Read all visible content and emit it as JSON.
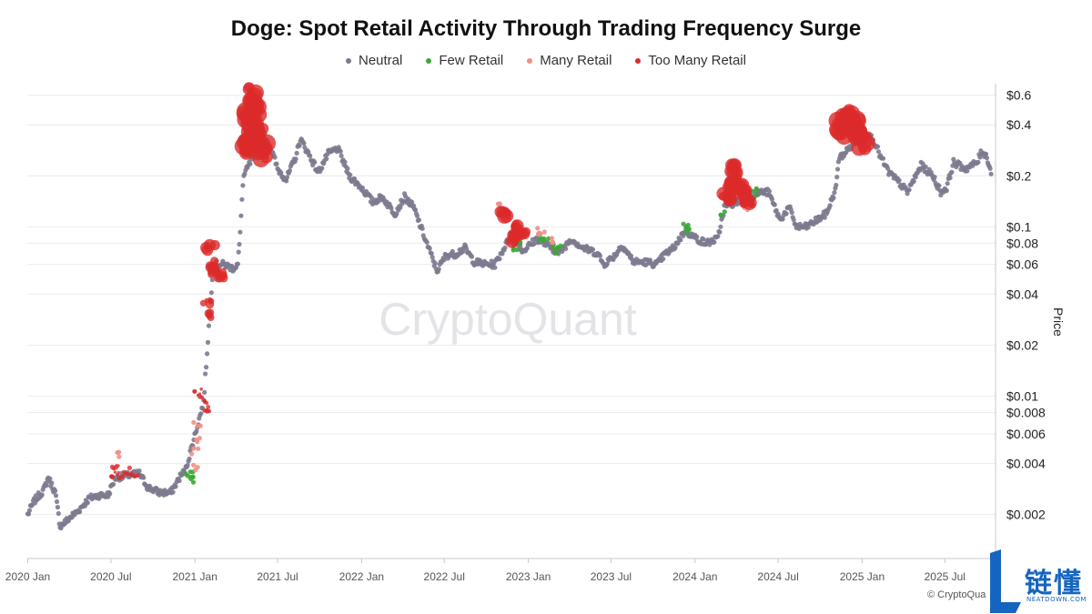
{
  "chart_data": {
    "type": "scatter",
    "title": "Doge: Spot Retail Activity Through Trading Frequency Surge",
    "ylabel": "Price",
    "yscale": "log",
    "ylim": [
      0.0011,
      0.7
    ],
    "xlim": [
      "2019-12-31",
      "2025-10-20"
    ],
    "grid": true,
    "legend_position": "top-center",
    "watermark": "CryptoQuant",
    "x_ticks": [
      "2020 Jan",
      "2020 Jul",
      "2021 Jan",
      "2021 Jul",
      "2022 Jan",
      "2022 Jul",
      "2023 Jan",
      "2023 Jul",
      "2024 Jan",
      "2024 Jul",
      "2025 Jan",
      "2025 Jul"
    ],
    "y_ticks": [
      {
        "value": 0.6,
        "label": "$0.6"
      },
      {
        "value": 0.4,
        "label": "$0.4"
      },
      {
        "value": 0.2,
        "label": "$0.2"
      },
      {
        "value": 0.1,
        "label": "$0.1"
      },
      {
        "value": 0.08,
        "label": "$0.08"
      },
      {
        "value": 0.06,
        "label": "$0.06"
      },
      {
        "value": 0.04,
        "label": "$0.04"
      },
      {
        "value": 0.02,
        "label": "$0.02"
      },
      {
        "value": 0.01,
        "label": "$0.01"
      },
      {
        "value": 0.008,
        "label": "$0.008"
      },
      {
        "value": 0.006,
        "label": "$0.006"
      },
      {
        "value": 0.004,
        "label": "$0.004"
      },
      {
        "value": 0.002,
        "label": "$0.002"
      }
    ],
    "series": [
      {
        "name": "Neutral",
        "color": "#7d7a8f",
        "points": [
          [
            "2020-01-01",
            0.002
          ],
          [
            "2020-01-15",
            0.0024
          ],
          [
            "2020-02-05",
            0.0028
          ],
          [
            "2020-02-15",
            0.0033
          ],
          [
            "2020-03-01",
            0.0027
          ],
          [
            "2020-03-12",
            0.0017
          ],
          [
            "2020-04-01",
            0.0019
          ],
          [
            "2020-04-20",
            0.0021
          ],
          [
            "2020-05-15",
            0.0025
          ],
          [
            "2020-06-05",
            0.0026
          ],
          [
            "2020-06-25",
            0.0026
          ],
          [
            "2020-07-10",
            0.0033
          ],
          [
            "2020-09-01",
            0.0035
          ],
          [
            "2020-09-20",
            0.0029
          ],
          [
            "2020-10-15",
            0.0027
          ],
          [
            "2020-11-10",
            0.0027
          ],
          [
            "2020-11-28",
            0.0033
          ],
          [
            "2020-12-12",
            0.0037
          ],
          [
            "2021-01-20",
            0.0092
          ],
          [
            "2021-02-10",
            0.06
          ],
          [
            "2021-03-05",
            0.06
          ],
          [
            "2021-03-25",
            0.057
          ],
          [
            "2021-04-05",
            0.06
          ],
          [
            "2021-04-10",
            0.09
          ],
          [
            "2021-04-14",
            0.15
          ],
          [
            "2021-04-18",
            0.2
          ],
          [
            "2021-06-01",
            0.35
          ],
          [
            "2021-06-15",
            0.3
          ],
          [
            "2021-07-01",
            0.22
          ],
          [
            "2021-07-20",
            0.19
          ],
          [
            "2021-08-10",
            0.26
          ],
          [
            "2021-08-20",
            0.33
          ],
          [
            "2021-09-10",
            0.26
          ],
          [
            "2021-09-28",
            0.21
          ],
          [
            "2021-10-20",
            0.27
          ],
          [
            "2021-11-10",
            0.29
          ],
          [
            "2021-12-05",
            0.2
          ],
          [
            "2022-01-01",
            0.17
          ],
          [
            "2022-01-25",
            0.14
          ],
          [
            "2022-02-15",
            0.15
          ],
          [
            "2022-03-15",
            0.12
          ],
          [
            "2022-04-05",
            0.15
          ],
          [
            "2022-04-25",
            0.13
          ],
          [
            "2022-05-20",
            0.085
          ],
          [
            "2022-06-15",
            0.055
          ],
          [
            "2022-07-05",
            0.068
          ],
          [
            "2022-07-25",
            0.069
          ],
          [
            "2022-08-15",
            0.075
          ],
          [
            "2022-09-05",
            0.062
          ],
          [
            "2022-10-01",
            0.06
          ],
          [
            "2022-10-20",
            0.06
          ],
          [
            "2022-11-25",
            0.09
          ],
          [
            "2022-12-20",
            0.072
          ],
          [
            "2023-01-20",
            0.085
          ],
          [
            "2023-03-10",
            0.07
          ],
          [
            "2023-04-05",
            0.085
          ],
          [
            "2023-05-01",
            0.075
          ],
          [
            "2023-06-01",
            0.07
          ],
          [
            "2023-06-15",
            0.06
          ],
          [
            "2023-07-10",
            0.068
          ],
          [
            "2023-07-25",
            0.078
          ],
          [
            "2023-08-20",
            0.062
          ],
          [
            "2023-09-15",
            0.062
          ],
          [
            "2023-10-10",
            0.06
          ],
          [
            "2023-10-25",
            0.068
          ],
          [
            "2023-11-15",
            0.075
          ],
          [
            "2023-12-10",
            0.095
          ],
          [
            "2024-01-05",
            0.085
          ],
          [
            "2024-01-25",
            0.08
          ],
          [
            "2024-02-20",
            0.085
          ],
          [
            "2024-03-05",
            0.13
          ],
          [
            "2024-05-20",
            0.16
          ],
          [
            "2024-06-10",
            0.16
          ],
          [
            "2024-07-05",
            0.11
          ],
          [
            "2024-07-25",
            0.13
          ],
          [
            "2024-08-10",
            0.1
          ],
          [
            "2024-09-01",
            0.1
          ],
          [
            "2024-09-25",
            0.11
          ],
          [
            "2024-10-15",
            0.12
          ],
          [
            "2024-11-05",
            0.17
          ],
          [
            "2024-11-10",
            0.25
          ],
          [
            "2025-01-05",
            0.36
          ],
          [
            "2025-01-25",
            0.33
          ],
          [
            "2025-02-10",
            0.26
          ],
          [
            "2025-02-28",
            0.21
          ],
          [
            "2025-03-25",
            0.18
          ],
          [
            "2025-04-10",
            0.16
          ],
          [
            "2025-05-10",
            0.23
          ],
          [
            "2025-06-05",
            0.2
          ],
          [
            "2025-06-22",
            0.16
          ],
          [
            "2025-07-05",
            0.17
          ],
          [
            "2025-07-20",
            0.24
          ],
          [
            "2025-08-15",
            0.22
          ],
          [
            "2025-09-10",
            0.24
          ],
          [
            "2025-09-20",
            0.28
          ],
          [
            "2025-10-01",
            0.26
          ],
          [
            "2025-10-12",
            0.2
          ]
        ]
      },
      {
        "name": "Few Retail",
        "color": "#3aa935",
        "points": [
          [
            "2020-12-18",
            0.0033
          ],
          [
            "2020-12-22",
            0.0035
          ],
          [
            "2020-12-25",
            0.0032
          ],
          [
            "2022-12-05",
            0.075
          ],
          [
            "2022-12-10",
            0.08
          ],
          [
            "2023-02-01",
            0.084
          ],
          [
            "2023-02-05",
            0.085
          ],
          [
            "2023-03-05",
            0.075
          ],
          [
            "2023-03-10",
            0.072
          ],
          [
            "2023-12-12",
            0.1
          ],
          [
            "2023-12-18",
            0.095
          ],
          [
            "2024-02-28",
            0.12
          ],
          [
            "2024-05-10",
            0.16
          ]
        ]
      },
      {
        "name": "Many Retail",
        "color": "#f08f85",
        "points": [
          [
            "2020-07-10",
            0.0045
          ],
          [
            "2020-12-28",
            0.0038
          ],
          [
            "2021-01-02",
            0.0047
          ],
          [
            "2021-01-05",
            0.0055
          ],
          [
            "2021-01-08",
            0.007
          ],
          [
            "2022-11-01",
            0.14
          ],
          [
            "2022-11-05",
            0.12
          ],
          [
            "2023-01-15",
            0.095
          ],
          [
            "2023-02-01",
            0.093
          ],
          [
            "2023-02-20",
            0.082
          ],
          [
            "2024-04-20",
            0.13
          ]
        ]
      },
      {
        "name": "Too Many Retail",
        "color": "#dc2a2a",
        "points": [
          [
            "2020-07-08",
            0.0035
          ],
          [
            "2020-07-14",
            0.0038
          ],
          [
            "2020-07-25",
            0.0034
          ],
          [
            "2020-08-10",
            0.0036
          ],
          [
            "2020-08-20",
            0.0034
          ],
          [
            "2021-01-10",
            0.0105
          ],
          [
            "2021-01-18",
            0.0095
          ],
          [
            "2021-01-25",
            0.0085
          ],
          [
            "2021-01-28",
            0.036
          ],
          [
            "2021-01-29",
            0.03
          ],
          [
            "2021-02-04",
            0.075
          ],
          [
            "2021-02-07",
            0.06
          ],
          [
            "2021-02-12",
            0.055
          ],
          [
            "2021-02-20",
            0.052
          ],
          [
            "2021-03-01",
            0.05
          ],
          [
            "2021-04-20",
            0.3
          ],
          [
            "2021-04-25",
            0.45
          ],
          [
            "2021-05-01",
            0.35
          ],
          [
            "2021-05-07",
            0.6
          ],
          [
            "2021-05-10",
            0.4
          ],
          [
            "2021-05-15",
            0.5
          ],
          [
            "2021-05-20",
            0.35
          ],
          [
            "2021-05-25",
            0.3
          ],
          [
            "2021-06-01",
            0.28
          ],
          [
            "2022-11-08",
            0.12
          ],
          [
            "2022-11-28",
            0.085
          ],
          [
            "2022-12-05",
            0.09
          ],
          [
            "2022-12-10",
            0.1
          ],
          [
            "2022-12-20",
            0.09
          ],
          [
            "2024-03-10",
            0.15
          ],
          [
            "2024-03-20",
            0.18
          ],
          [
            "2024-03-28",
            0.21
          ],
          [
            "2024-04-05",
            0.17
          ],
          [
            "2024-04-15",
            0.16
          ],
          [
            "2024-04-25",
            0.14
          ],
          [
            "2024-11-15",
            0.38
          ],
          [
            "2024-11-25",
            0.42
          ],
          [
            "2024-12-05",
            0.45
          ],
          [
            "2024-12-15",
            0.4
          ],
          [
            "2024-12-25",
            0.35
          ],
          [
            "2025-01-01",
            0.32
          ]
        ]
      }
    ]
  },
  "copyright": "© CryptoQua",
  "logo": {
    "text": "链懂",
    "sub": "NEATDOWN.COM"
  }
}
